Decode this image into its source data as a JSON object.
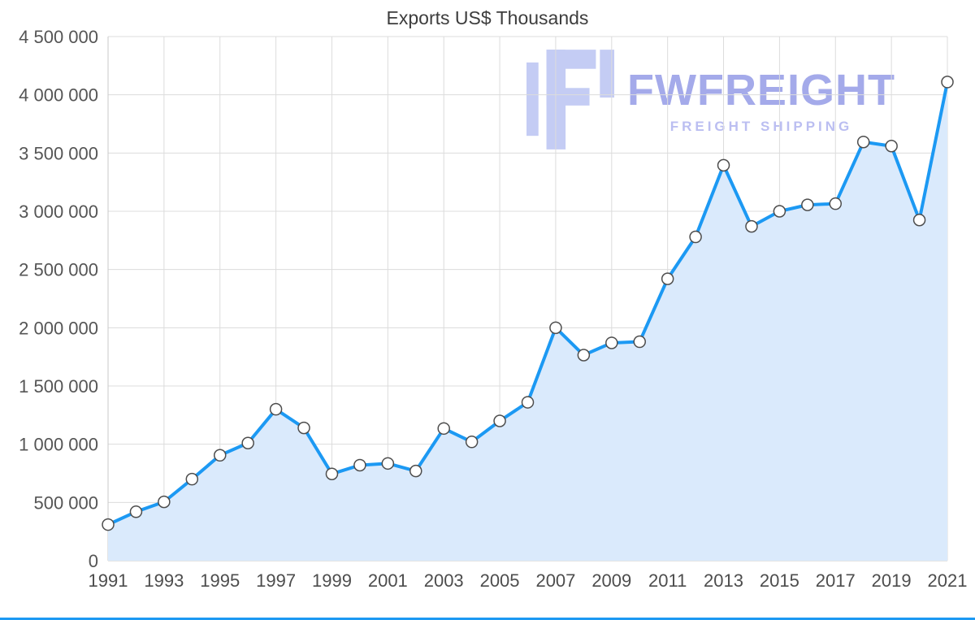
{
  "watermark": {
    "brand": "FWFREIGHT",
    "tagline": "FREIGHT SHIPPING",
    "brand_color": "#9ba1e8",
    "tagline_color": "#b4b8f0"
  },
  "chart_data": {
    "type": "area",
    "title": "Exports US$ Thousands",
    "xlabel": "",
    "ylabel": "",
    "x": [
      1991,
      1992,
      1993,
      1994,
      1995,
      1996,
      1997,
      1998,
      1999,
      2000,
      2001,
      2002,
      2003,
      2004,
      2005,
      2006,
      2007,
      2008,
      2009,
      2010,
      2011,
      2012,
      2013,
      2014,
      2015,
      2016,
      2017,
      2018,
      2019,
      2020,
      2021
    ],
    "values": [
      310000,
      420000,
      505000,
      700000,
      905000,
      1010000,
      1300000,
      1140000,
      745000,
      820000,
      835000,
      770000,
      1135000,
      1020000,
      1200000,
      1360000,
      2000000,
      1765000,
      1870000,
      1880000,
      2420000,
      2780000,
      3395000,
      2870000,
      3000000,
      3055000,
      3065000,
      3595000,
      3560000,
      2925000,
      4110000
    ],
    "ylim": [
      0,
      4500000
    ],
    "y_ticks": [
      {
        "value": 0,
        "label": "0"
      },
      {
        "value": 500000,
        "label": "500 000"
      },
      {
        "value": 1000000,
        "label": "1 000 000"
      },
      {
        "value": 1500000,
        "label": "1 500 000"
      },
      {
        "value": 2000000,
        "label": "2 000 000"
      },
      {
        "value": 2500000,
        "label": "2 500 000"
      },
      {
        "value": 3000000,
        "label": "3 000 000"
      },
      {
        "value": 3500000,
        "label": "3 500 000"
      },
      {
        "value": 4000000,
        "label": "4 000 000"
      },
      {
        "value": 4500000,
        "label": "4 500 000"
      }
    ],
    "x_ticks": [
      1991,
      1993,
      1995,
      1997,
      1999,
      2001,
      2003,
      2005,
      2007,
      2009,
      2011,
      2013,
      2015,
      2017,
      2019,
      2021
    ],
    "grid": true,
    "legend": "none",
    "line_color": "#1c99f3",
    "area_color": "#daeafc",
    "marker": "circle-white"
  }
}
